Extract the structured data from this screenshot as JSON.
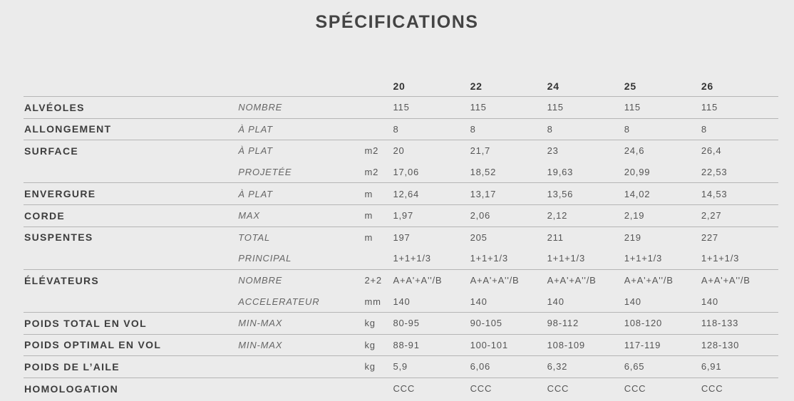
{
  "title": "SPÉCIFICATIONS",
  "sizes": [
    "20",
    "22",
    "24",
    "25",
    "26"
  ],
  "rows": [
    {
      "label": "ALVÉOLES",
      "subs": [
        {
          "name": "NOMBRE",
          "unit": "",
          "values": [
            "115",
            "115",
            "115",
            "115",
            "115"
          ]
        }
      ]
    },
    {
      "label": "ALLONGEMENT",
      "subs": [
        {
          "name": "À PLAT",
          "unit": "",
          "values": [
            "8",
            "8",
            "8",
            "8",
            "8"
          ]
        }
      ]
    },
    {
      "label": "SURFACE",
      "subs": [
        {
          "name": "À PLAT",
          "unit": "m2",
          "values": [
            "20",
            "21,7",
            "23",
            "24,6",
            "26,4"
          ]
        },
        {
          "name": "PROJETÉE",
          "unit": "m2",
          "values": [
            "17,06",
            "18,52",
            "19,63",
            "20,99",
            "22,53"
          ]
        }
      ]
    },
    {
      "label": "ENVERGURE",
      "subs": [
        {
          "name": "À PLAT",
          "unit": "m",
          "values": [
            "12,64",
            "13,17",
            "13,56",
            "14,02",
            "14,53"
          ]
        }
      ]
    },
    {
      "label": "CORDE",
      "subs": [
        {
          "name": "MAX",
          "unit": "m",
          "values": [
            "1,97",
            "2,06",
            "2,12",
            "2,19",
            "2,27"
          ]
        }
      ]
    },
    {
      "label": "SUSPENTES",
      "subs": [
        {
          "name": "TOTAL",
          "unit": "m",
          "values": [
            "197",
            "205",
            "211",
            "219",
            "227"
          ]
        },
        {
          "name": "PRINCIPAL",
          "unit": "",
          "values": [
            "1+1+1/3",
            "1+1+1/3",
            "1+1+1/3",
            "1+1+1/3",
            "1+1+1/3"
          ]
        }
      ]
    },
    {
      "label": "ÉLÉVATEURS",
      "subs": [
        {
          "name": "NOMBRE",
          "unit": "2+2",
          "values": [
            "A+A'+A''/B",
            "A+A'+A''/B",
            "A+A'+A''/B",
            "A+A'+A''/B",
            "A+A'+A''/B"
          ]
        },
        {
          "name": "ACCELERATEUR",
          "unit": "mm",
          "values": [
            "140",
            "140",
            "140",
            "140",
            "140"
          ]
        }
      ]
    },
    {
      "label": "POIDS TOTAL EN VOL",
      "subs": [
        {
          "name": "MIN-MAX",
          "unit": "kg",
          "values": [
            "80-95",
            "90-105",
            "98-112",
            "108-120",
            "118-133"
          ]
        }
      ]
    },
    {
      "label": "POIDS OPTIMAL EN VOL",
      "subs": [
        {
          "name": "MIN-MAX",
          "unit": "kg",
          "values": [
            "88-91",
            "100-101",
            "108-109",
            "117-119",
            "128-130"
          ]
        }
      ]
    },
    {
      "label": "POIDS DE L’AILE",
      "subs": [
        {
          "name": "",
          "unit": "kg",
          "values": [
            "5,9",
            "6,06",
            "6,32",
            "6,65",
            "6,91"
          ]
        }
      ]
    },
    {
      "label": "HOMOLOGATION",
      "subs": [
        {
          "name": "",
          "unit": "",
          "values": [
            "CCC",
            "CCC",
            "CCC",
            "CCC",
            "CCC"
          ]
        }
      ]
    }
  ]
}
